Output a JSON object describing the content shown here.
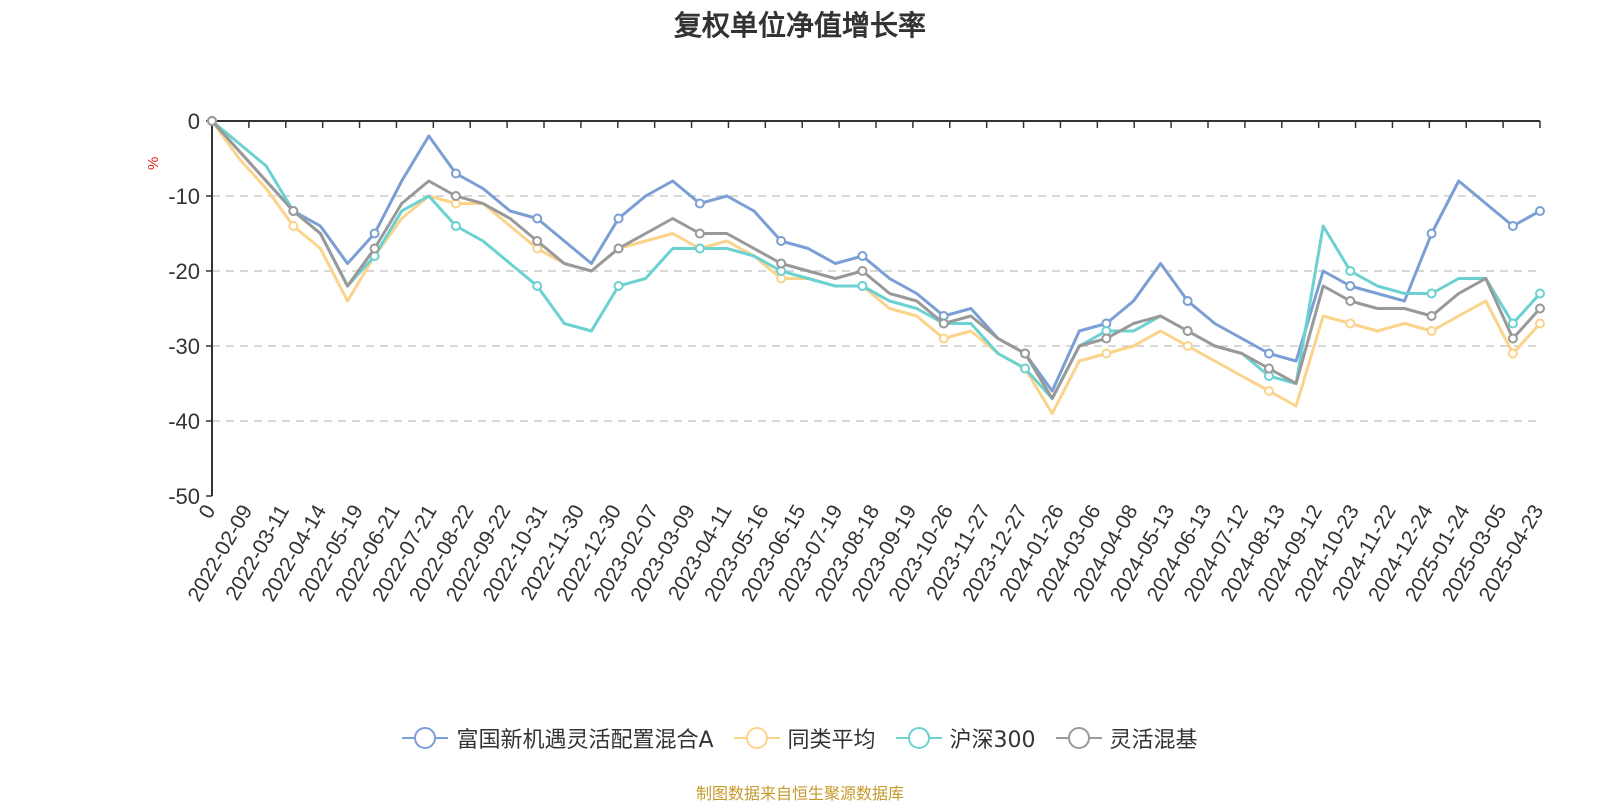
{
  "chart_data": {
    "type": "line",
    "title": "复权单位净值增长率",
    "ylabel": "%",
    "ylim": [
      -50,
      0
    ],
    "yticks": [
      0,
      -10,
      -20,
      -30,
      -40,
      -50
    ],
    "x_tick_labels": [
      "0",
      "2022-02-09",
      "2022-03-11",
      "2022-04-14",
      "2022-05-19",
      "2022-06-21",
      "2022-07-21",
      "2022-08-22",
      "2022-09-22",
      "2022-10-31",
      "2022-11-30",
      "2022-12-30",
      "2023-02-07",
      "2023-03-09",
      "2023-04-11",
      "2023-05-16",
      "2023-06-15",
      "2023-07-19",
      "2023-08-18",
      "2023-09-19",
      "2023-10-26",
      "2023-11-27",
      "2023-12-27",
      "2024-01-26",
      "2024-03-06",
      "2024-04-08",
      "2024-05-13",
      "2024-06-13",
      "2024-07-12",
      "2024-08-13",
      "2024-09-12",
      "2024-10-23",
      "2024-11-22",
      "2024-12-24",
      "2025-01-24",
      "2025-03-05",
      "2025-04-23"
    ],
    "grid": true,
    "legend_position": "bottom",
    "series": [
      {
        "name": "富国新机遇灵活配置混合A",
        "color": "#7b9fd4",
        "values": [
          0,
          -4,
          -8,
          -12,
          -14,
          -19,
          -15,
          -8,
          -2,
          -7,
          -9,
          -12,
          -13,
          -16,
          -19,
          -13,
          -10,
          -8,
          -11,
          -10,
          -12,
          -16,
          -17,
          -19,
          -18,
          -21,
          -23,
          -26,
          -25,
          -29,
          -31,
          -36,
          -28,
          -27,
          -24,
          -19,
          -24,
          -27,
          -29,
          -31,
          -32,
          -20,
          -22,
          -23,
          -24,
          -15,
          -8,
          -11,
          -14,
          -12
        ]
      },
      {
        "name": "同类平均",
        "color": "#fbd38b",
        "values": [
          0,
          -5,
          -9,
          -14,
          -17,
          -24,
          -18,
          -13,
          -10,
          -11,
          -11,
          -14,
          -17,
          -19,
          -20,
          -17,
          -16,
          -15,
          -17,
          -16,
          -18,
          -21,
          -21,
          -22,
          -22,
          -25,
          -26,
          -29,
          -28,
          -31,
          -33,
          -39,
          -32,
          -31,
          -30,
          -28,
          -30,
          -32,
          -34,
          -36,
          -38,
          -26,
          -27,
          -28,
          -27,
          -28,
          -26,
          -24,
          -31,
          -27
        ]
      },
      {
        "name": "沪深300",
        "color": "#6bd1d1",
        "values": [
          0,
          -3,
          -6,
          -12,
          -15,
          -22,
          -18,
          -12,
          -10,
          -14,
          -16,
          -19,
          -22,
          -27,
          -28,
          -22,
          -21,
          -17,
          -17,
          -17,
          -18,
          -20,
          -21,
          -22,
          -22,
          -24,
          -25,
          -27,
          -27,
          -31,
          -33,
          -37,
          -30,
          -28,
          -28,
          -26,
          -28,
          -30,
          -31,
          -34,
          -35,
          -14,
          -20,
          -22,
          -23,
          -23,
          -21,
          -21,
          -27,
          -23
        ]
      },
      {
        "name": "灵活混基",
        "color": "#999999",
        "values": [
          0,
          -4,
          -8,
          -12,
          -15,
          -22,
          -17,
          -11,
          -8,
          -10,
          -11,
          -13,
          -16,
          -19,
          -20,
          -17,
          -15,
          -13,
          -15,
          -15,
          -17,
          -19,
          -20,
          -21,
          -20,
          -23,
          -24,
          -27,
          -26,
          -29,
          -31,
          -37,
          -30,
          -29,
          -27,
          -26,
          -28,
          -30,
          -31,
          -33,
          -35,
          -22,
          -24,
          -25,
          -25,
          -26,
          -23,
          -21,
          -29,
          -25
        ]
      }
    ]
  },
  "source_note": "制图数据来自恒生聚源数据库"
}
